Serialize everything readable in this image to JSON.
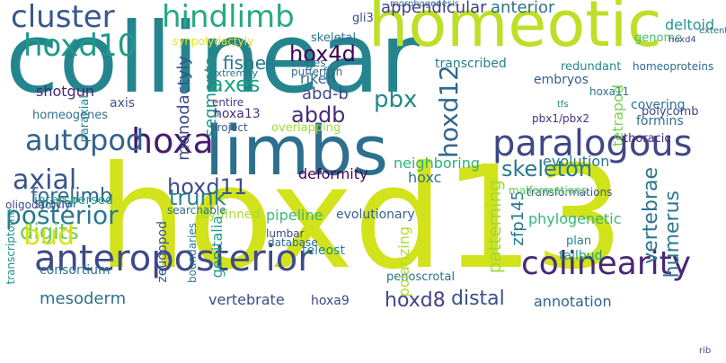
{
  "colors": {
    "background": "#ffffff",
    "palette": [
      "#440154",
      "#472d7b",
      "#3b528b",
      "#2c728e",
      "#21918c",
      "#28ae80",
      "#5ec962",
      "#addc30",
      "#fde725"
    ]
  },
  "words": [
    {
      "text": "hoxd13",
      "color": "#d2e21b"
    },
    {
      "text": "collinear",
      "color": "#25858e"
    },
    {
      "text": "homeotic",
      "color": "#bddf26"
    },
    {
      "text": "limbs",
      "color": "#2d6f8e"
    },
    {
      "text": "anteroposterior",
      "color": "#3e4989"
    },
    {
      "text": "colinearity",
      "color": "#482878"
    },
    {
      "text": "paralogous",
      "color": "#3f4788"
    },
    {
      "text": "hoxd12",
      "color": "#31668e"
    },
    {
      "text": "hoxa",
      "color": "#481b6d"
    },
    {
      "text": "hoxd10",
      "color": "#1f9a8a"
    },
    {
      "text": "cluster",
      "color": "#38588c"
    },
    {
      "text": "hindlimb",
      "color": "#24aa83"
    },
    {
      "text": "autopod",
      "color": "#33638d"
    },
    {
      "text": "posterior",
      "color": "#2a788e"
    },
    {
      "text": "digits",
      "color": "#6ccd5a"
    },
    {
      "text": "bud",
      "color": "#d8e219"
    },
    {
      "text": "axial",
      "color": "#3a548c"
    },
    {
      "text": "forelimb",
      "color": "#33638d"
    },
    {
      "text": "hoxd11",
      "color": "#3d4e8a"
    },
    {
      "text": "trunk",
      "color": "#277f8e"
    },
    {
      "text": "hox4d",
      "color": "#440154"
    },
    {
      "text": "abdb",
      "color": "#472c7a"
    },
    {
      "text": "axes",
      "color": "#20a386"
    },
    {
      "text": "pbx",
      "color": "#23888e"
    },
    {
      "text": "skeleton",
      "color": "#2a788e"
    },
    {
      "text": "vertebrae",
      "color": "#2c738e"
    },
    {
      "text": "humerus",
      "color": "#29798e"
    },
    {
      "text": "hoxd8",
      "color": "#414487"
    },
    {
      "text": "distal",
      "color": "#3b518b"
    },
    {
      "text": "mesoderm",
      "color": "#2d718e"
    },
    {
      "text": "appendicular",
      "color": "#433e85"
    },
    {
      "text": "anterior",
      "color": "#2c728e"
    },
    {
      "text": "gli3",
      "color": "#3e4a89"
    },
    {
      "text": "fishes",
      "color": "#2a768e"
    },
    {
      "text": "monodactyly",
      "color": "#3d4d8a"
    },
    {
      "text": "segments",
      "color": "#21918c"
    },
    {
      "text": "riken",
      "color": "#31688e"
    },
    {
      "text": "abd-b",
      "color": "#3f4889"
    },
    {
      "text": "hoxa13",
      "color": "#46307e"
    },
    {
      "text": "shotgun",
      "color": "#482475"
    },
    {
      "text": "paraxial",
      "color": "#26828e"
    },
    {
      "text": "axis",
      "color": "#3b528b"
    },
    {
      "text": "homeogenes",
      "color": "#2c738e"
    },
    {
      "text": "transcribed",
      "color": "#27808e"
    },
    {
      "text": "embryos",
      "color": "#355f8d"
    },
    {
      "text": "pbx1/pbx2",
      "color": "#46327e"
    },
    {
      "text": "redundant",
      "color": "#23898e"
    },
    {
      "text": "homeoproteins",
      "color": "#2f6c8e"
    },
    {
      "text": "tetrapod",
      "color": "#7ad151"
    },
    {
      "text": "deformity",
      "color": "#440154"
    },
    {
      "text": "neighboring",
      "color": "#2db27d"
    },
    {
      "text": "evolution",
      "color": "#2a788e"
    },
    {
      "text": "thoracic",
      "color": "#482576"
    },
    {
      "text": "hoxc",
      "color": "#2d708e"
    },
    {
      "text": "patterning",
      "color": "#a0da39"
    },
    {
      "text": "zfp145",
      "color": "#2a778e"
    },
    {
      "text": "pipeline",
      "color": "#3aba76"
    },
    {
      "text": "ray-finned",
      "color": "#a8db34"
    },
    {
      "text": "evolutionary",
      "color": "#34618d"
    },
    {
      "text": "genitalia",
      "color": "#1f9e89"
    },
    {
      "text": "zeugopod",
      "color": "#3a538b"
    },
    {
      "text": "boundaries",
      "color": "#2a788e"
    },
    {
      "text": "teleost",
      "color": "#24868e"
    },
    {
      "text": "vertebrate",
      "color": "#3e4a89"
    },
    {
      "text": "hoxa9",
      "color": "#3f4788"
    },
    {
      "text": "annotation",
      "color": "#33628d"
    },
    {
      "text": "tailbud",
      "color": "#1fa088"
    },
    {
      "text": "plan",
      "color": "#25838e"
    },
    {
      "text": "phylogenetic",
      "color": "#35b779"
    },
    {
      "text": "formins",
      "color": "#2d708e"
    },
    {
      "text": "covering",
      "color": "#2d708e"
    },
    {
      "text": "polycomb",
      "color": "#3f4889"
    },
    {
      "text": "deltoid",
      "color": "#1f978b"
    },
    {
      "text": "interspersed",
      "color": "#1fa088"
    },
    {
      "text": "spatial",
      "color": "#2a788e"
    },
    {
      "text": "penoscrotal",
      "color": "#2d718e"
    },
    {
      "text": "polarizing",
      "color": "#addc30"
    },
    {
      "text": "genome",
      "color": "#4ac16d"
    },
    {
      "text": "skeletal",
      "color": "#2a768e"
    },
    {
      "text": "clones",
      "color": "#2d708e"
    },
    {
      "text": "pufferfish",
      "color": "#31678e"
    },
    {
      "text": "synpolydactyly",
      "color": "#e5e419"
    },
    {
      "text": "extremity",
      "color": "#2a768e"
    },
    {
      "text": "project",
      "color": "#38598c"
    },
    {
      "text": "overlapping",
      "color": "#a0da39"
    },
    {
      "text": "entire",
      "color": "#443983"
    },
    {
      "text": "lumbar",
      "color": "#3f4788"
    },
    {
      "text": "searchable",
      "color": "#2c728e"
    },
    {
      "text": "database",
      "color": "#31688e"
    },
    {
      "text": "consortium",
      "color": "#2a778e"
    },
    {
      "text": "transformations",
      "color": "#38588c"
    },
    {
      "text": "transcriptome",
      "color": "#21918c"
    },
    {
      "text": "oligodactyly",
      "color": "#3e4a89"
    },
    {
      "text": "malformations",
      "color": "#5ec962"
    },
    {
      "text": "hoxa11",
      "color": "#2c728e"
    },
    {
      "text": "tfs",
      "color": "#25838e"
    },
    {
      "text": "morphogenesis",
      "color": "#31688e"
    },
    {
      "text": "extent",
      "color": "#2f6c8e"
    },
    {
      "text": "hoxd4",
      "color": "#3f4788"
    },
    {
      "text": "rib",
      "color": "#3b518b"
    }
  ]
}
